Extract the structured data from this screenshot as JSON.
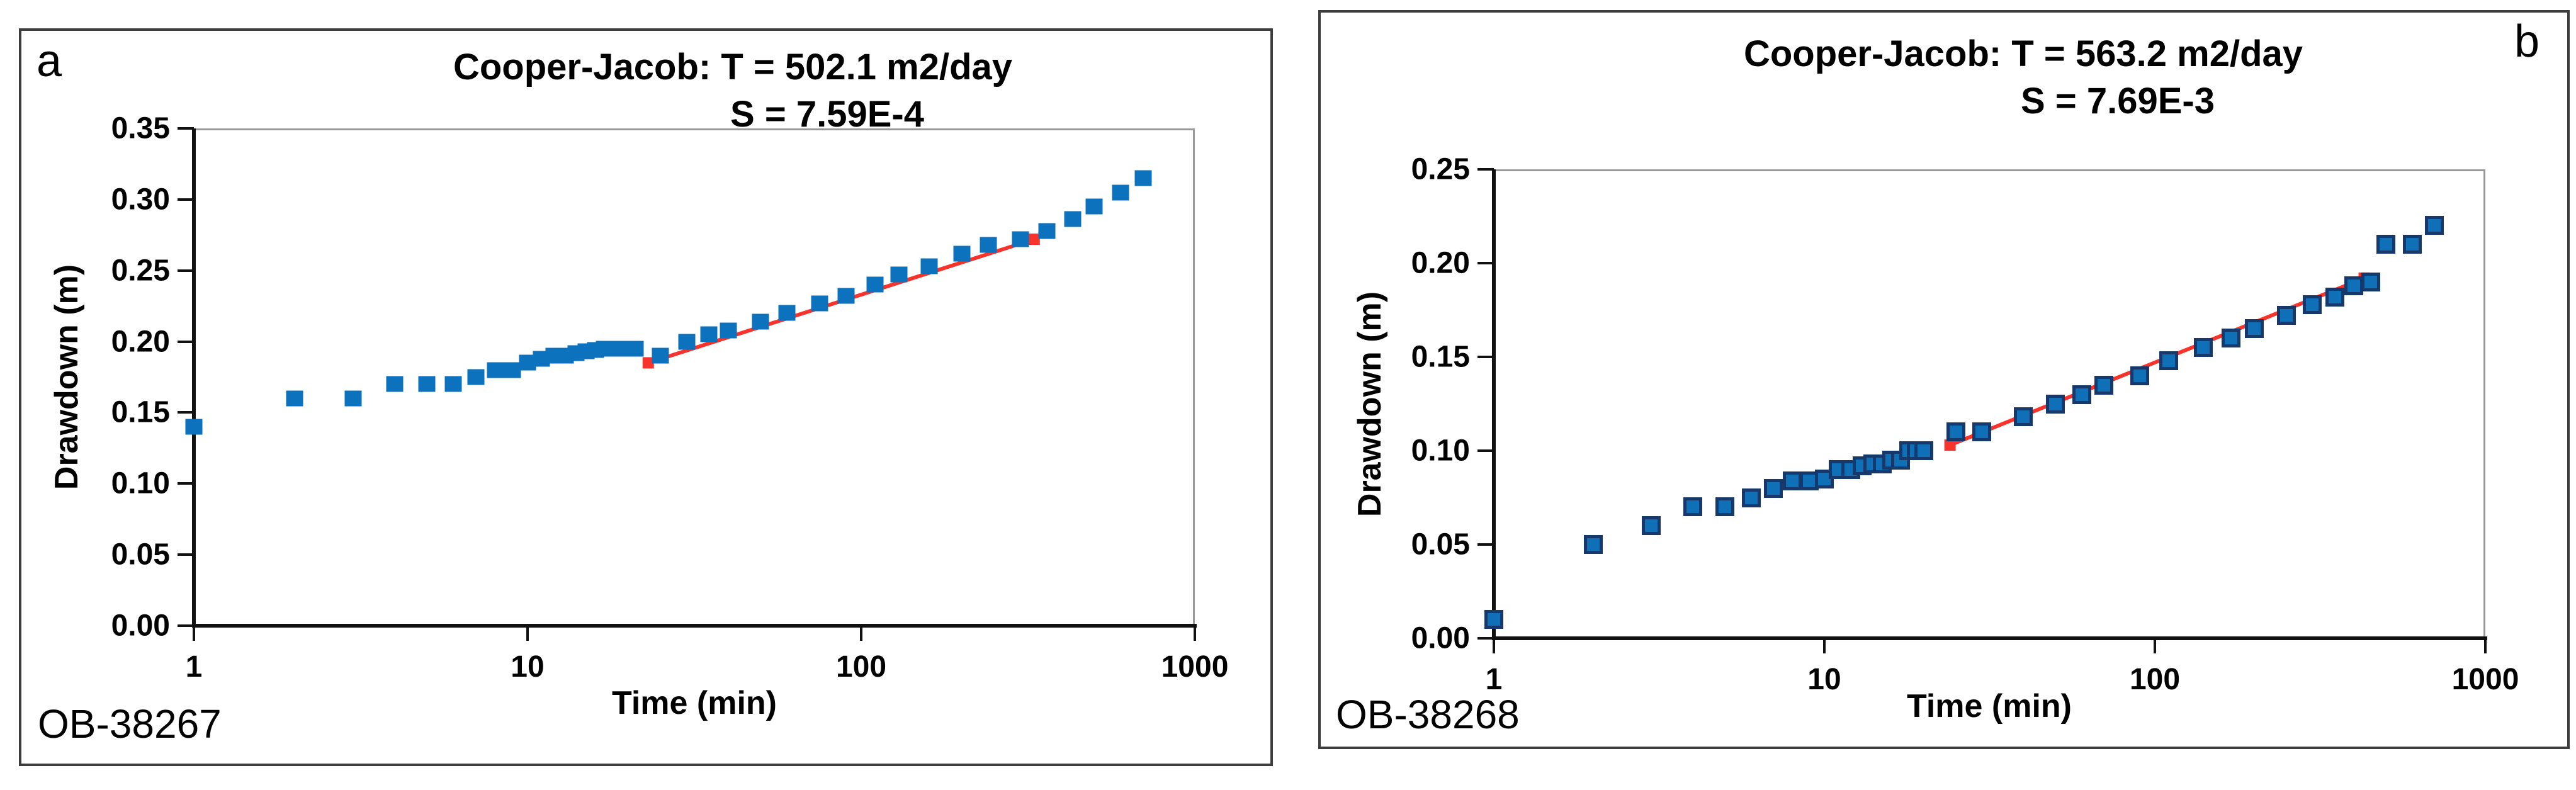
{
  "figure": {
    "xlabel": "Time (min)",
    "ylabel": "Drawdown (m)",
    "marker_color_a": "#0c72be",
    "marker_fill_b": "#0f70b8",
    "marker_border_b": "#16386b",
    "trend_color": "#f8332b",
    "frame_color": "#3d3d3d"
  },
  "chart_data": [
    {
      "type": "scatter",
      "panel_letter": "a",
      "well_label": "OB-38267",
      "title_line1": "Cooper-Jacob: T = 502.1 m2/day",
      "title_line2": "S = 7.59E-4",
      "xlabel": "Time (min)",
      "ylabel": "Drawdown (m)",
      "xscale": "log",
      "xlim": [
        1,
        1000
      ],
      "ylim": [
        0,
        0.35
      ],
      "ytick_step": 0.05,
      "xticks": [
        1,
        10,
        100,
        1000
      ],
      "grid": false,
      "legend": "none",
      "x": [
        1,
        2,
        3,
        4,
        5,
        6,
        7,
        8,
        9,
        10,
        11,
        12,
        13,
        14,
        15,
        16,
        17,
        18,
        19,
        20,
        21,
        25,
        30,
        35,
        40,
        50,
        60,
        75,
        90,
        110,
        130,
        160,
        200,
        240,
        300,
        360,
        430,
        500,
        600,
        700
      ],
      "y": [
        0.14,
        0.16,
        0.16,
        0.17,
        0.17,
        0.17,
        0.175,
        0.18,
        0.18,
        0.185,
        0.188,
        0.19,
        0.19,
        0.192,
        0.193,
        0.194,
        0.195,
        0.195,
        0.195,
        0.195,
        0.195,
        0.19,
        0.2,
        0.205,
        0.208,
        0.214,
        0.22,
        0.227,
        0.232,
        0.24,
        0.247,
        0.253,
        0.262,
        0.268,
        0.272,
        0.278,
        0.286,
        0.295,
        0.305,
        0.315
      ],
      "trendline": {
        "x_start": 23,
        "y_start": 0.185,
        "x_end": 330,
        "y_end": 0.272,
        "color": "#f8332b"
      }
    },
    {
      "type": "scatter",
      "panel_letter": "b",
      "well_label": "OB-38268",
      "title_line1": "Cooper-Jacob: T = 563.2 m2/day",
      "title_line2": "S = 7.69E-3",
      "xlabel": "Time (min)",
      "ylabel": "Drawdown (m)",
      "xscale": "log",
      "xlim": [
        1,
        1000
      ],
      "ylim": [
        0,
        0.25
      ],
      "ytick_step": 0.05,
      "xticks": [
        1,
        10,
        100,
        1000
      ],
      "grid": false,
      "legend": "none",
      "x": [
        1,
        2,
        3,
        4,
        5,
        6,
        7,
        8,
        9,
        10,
        11,
        12,
        13,
        14,
        15,
        16,
        17,
        18,
        19,
        20,
        25,
        30,
        40,
        50,
        60,
        70,
        90,
        110,
        140,
        170,
        200,
        250,
        300,
        350,
        400,
        450,
        500,
        600,
        700
      ],
      "y": [
        0.01,
        0.05,
        0.06,
        0.07,
        0.07,
        0.075,
        0.08,
        0.084,
        0.084,
        0.085,
        0.09,
        0.09,
        0.092,
        0.093,
        0.093,
        0.095,
        0.095,
        0.1,
        0.1,
        0.1,
        0.11,
        0.11,
        0.118,
        0.125,
        0.13,
        0.135,
        0.14,
        0.148,
        0.155,
        0.16,
        0.165,
        0.172,
        0.178,
        0.182,
        0.188,
        0.19,
        0.21,
        0.21,
        0.22
      ],
      "trendline": {
        "x_start": 24,
        "y_start": 0.103,
        "x_end": 430,
        "y_end": 0.192,
        "color": "#f8332b"
      }
    }
  ]
}
